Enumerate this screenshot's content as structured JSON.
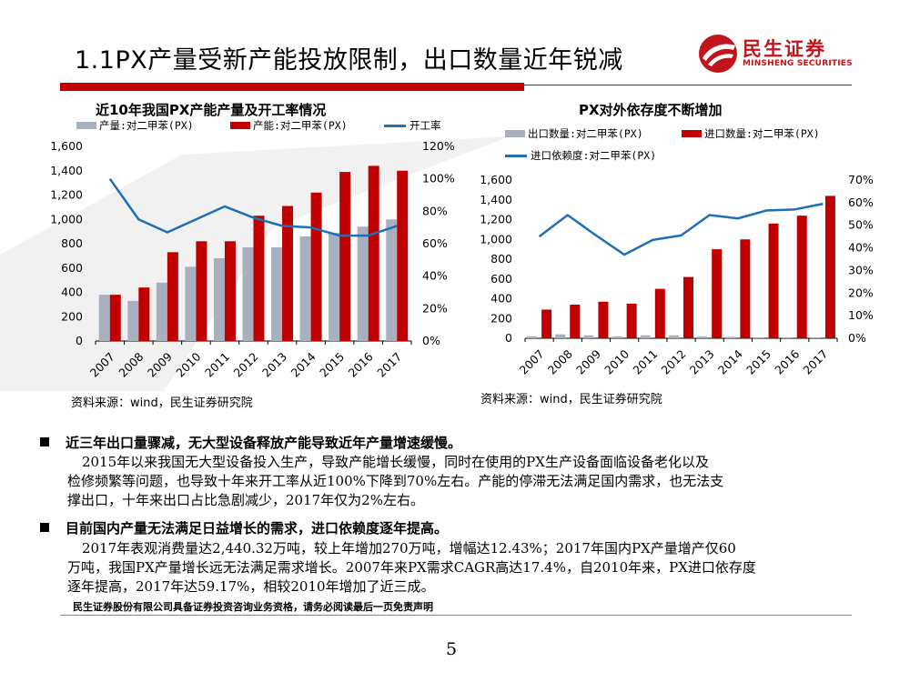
{
  "page": {
    "title": "1.1PX产量受新产能投放限制，出口数量近年锐减",
    "logo_cn": "民生证券",
    "logo_en": "MINSHENG SECURITIES",
    "page_number": "5",
    "disclaimer": "民生证券股份有限公司具备证券投资咨询业务资格，请务必阅读最后一页免责声明"
  },
  "colors": {
    "gray_bar": "#a6b0bf",
    "red_bar": "#c00000",
    "line": "#1f6fb5",
    "accent_red": "#c00000"
  },
  "chart_data": [
    {
      "type": "bar",
      "title": "近10年我国PX产能产量及开工率情况",
      "source": "资料来源：wind，民生证券研究院",
      "categories": [
        "2007",
        "2008",
        "2009",
        "2010",
        "2011",
        "2012",
        "2013",
        "2014",
        "2015",
        "2016",
        "2017"
      ],
      "series": [
        {
          "name": "产量:对二甲苯(PX)",
          "kind": "bar",
          "axis": "left",
          "values": [
            380,
            330,
            480,
            610,
            680,
            770,
            770,
            860,
            890,
            940,
            1000
          ]
        },
        {
          "name": "产能:对二甲苯(PX)",
          "kind": "bar",
          "axis": "left",
          "values": [
            380,
            440,
            730,
            820,
            820,
            1030,
            1110,
            1220,
            1390,
            1440,
            1400
          ]
        },
        {
          "name": "开工率",
          "kind": "line",
          "axis": "right",
          "values": [
            100,
            75,
            67,
            75,
            83,
            76,
            71,
            70,
            65,
            65,
            71
          ]
        }
      ],
      "ylim_left": [
        0,
        1600
      ],
      "yticks_left": [
        "0",
        "200",
        "400",
        "600",
        "800",
        "1,000",
        "1,200",
        "1,400",
        "1,600"
      ],
      "ylim_right": [
        0,
        120
      ],
      "yticks_right": [
        "0%",
        "20%",
        "40%",
        "60%",
        "80%",
        "100%",
        "120%"
      ]
    },
    {
      "type": "bar",
      "title": "PX对外依存度不断增加",
      "source": "资料来源：wind，民生证券研究院",
      "categories": [
        "2007",
        "2008",
        "2009",
        "2010",
        "2011",
        "2012",
        "2013",
        "2014",
        "2015",
        "2016",
        "2017"
      ],
      "series": [
        {
          "name": "出口数量:对二甲苯(PX)",
          "kind": "bar",
          "axis": "left",
          "values": [
            20,
            40,
            30,
            20,
            30,
            30,
            20,
            15,
            10,
            10,
            10
          ]
        },
        {
          "name": "进口数量:对二甲苯(PX)",
          "kind": "bar",
          "axis": "left",
          "values": [
            290,
            340,
            370,
            350,
            500,
            620,
            900,
            1000,
            1160,
            1240,
            1440
          ]
        },
        {
          "name": "进口依赖度:对二甲苯(PX)",
          "kind": "line",
          "axis": "right",
          "values": [
            45,
            54.5,
            45.5,
            37,
            43.5,
            45.5,
            54.5,
            53,
            56.5,
            57,
            59.5
          ]
        }
      ],
      "ylim_left": [
        0,
        1600
      ],
      "yticks_left": [
        "0",
        "200",
        "400",
        "600",
        "800",
        "1,000",
        "1,200",
        "1,400",
        "1,600"
      ],
      "ylim_right": [
        0,
        70
      ],
      "yticks_right": [
        "0%",
        "10%",
        "20%",
        "30%",
        "40%",
        "50%",
        "60%",
        "70%"
      ]
    }
  ],
  "body": {
    "bullet1": "近三年出口量骤减，无大型设备释放产能导致近年产量增速缓慢。",
    "para1": [
      "2015年以来我国无大型设备投入生产，导致产能增长缓慢，同时在使用的PX生产设备面临设备老化以及",
      "检修频繁等问题，也导致十年来开工率从近100%下降到70%左右。产能的停滞无法满足国内需求，也无法支",
      "撑出口，十年来出口占比急剧减少，2017年仅为2%左右。"
    ],
    "bullet2": "目前国内产量无法满足日益增长的需求，进口依赖度逐年提高。",
    "para2": [
      "2017年表观消费量达2,440.32万吨，较上年增加270万吨，增幅达12.43%；2017年国内PX产量增产仅60",
      "万吨，我国PX产量增长远无法满足需求增长。2007年来PX需求CAGR高达17.4%，自2010年来，PX进口依存度",
      "逐年提高，2017年达59.17%，相较2010年增加了近三成。"
    ]
  }
}
